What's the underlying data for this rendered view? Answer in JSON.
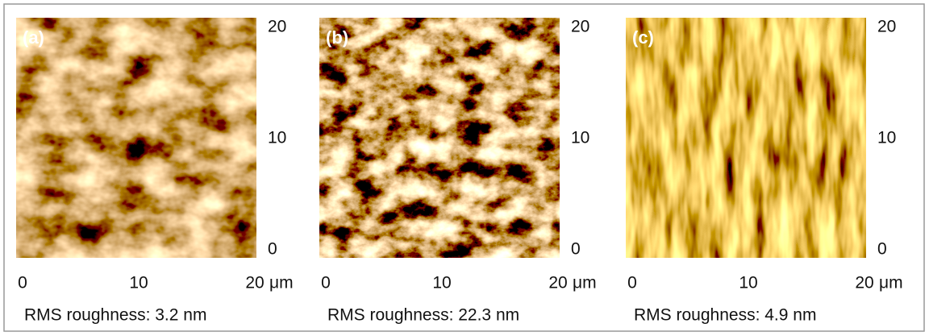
{
  "panels": [
    {
      "label": "(a)",
      "xticks": [
        0,
        10,
        20
      ],
      "x_unit": "μm",
      "yticks": [
        0,
        10,
        20
      ],
      "caption": "RMS roughness: 3.2 nm"
    },
    {
      "label": "(b)",
      "xticks": [
        0,
        10,
        20
      ],
      "x_unit": "μm",
      "yticks": [
        0,
        10,
        20
      ],
      "caption": "RMS roughness: 22.3 nm"
    },
    {
      "label": "(c)",
      "xticks": [
        0,
        10,
        20
      ],
      "x_unit": "μm",
      "yticks": [
        0,
        10,
        20
      ],
      "caption": "RMS roughness: 4.9 nm"
    }
  ]
}
